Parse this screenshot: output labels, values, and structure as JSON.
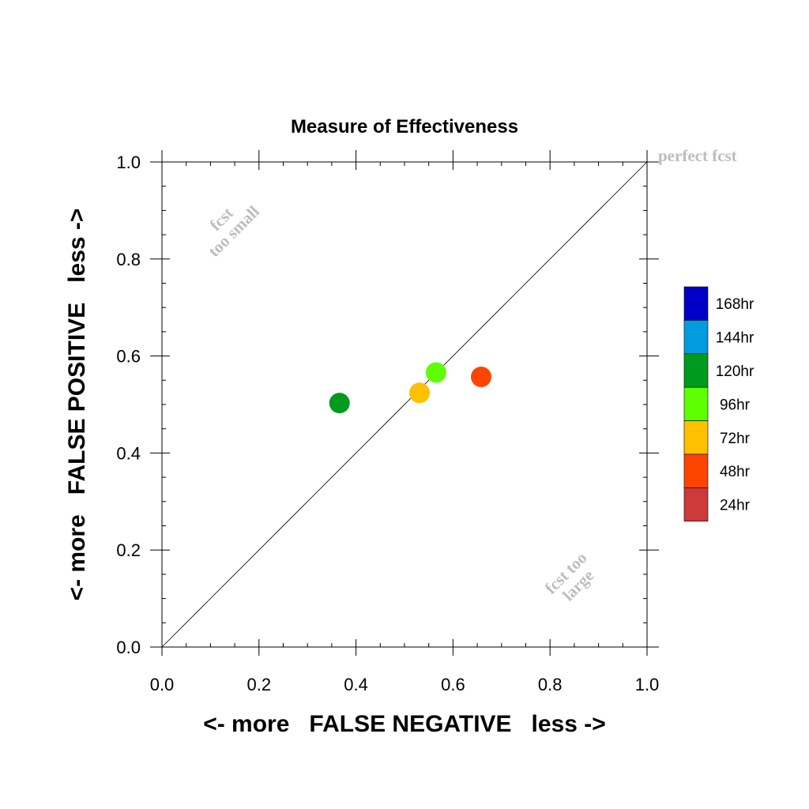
{
  "chart_data": {
    "type": "scatter",
    "title": "Measure of Effectiveness",
    "xlabel": "<- more   FALSE NEGATIVE   less ->",
    "ylabel": "<- more   FALSE POSITIVE   less ->",
    "xlim": [
      0.0,
      1.0
    ],
    "ylim": [
      0.0,
      1.0
    ],
    "x_ticks": [
      "0.0",
      "0.2",
      "0.4",
      "0.6",
      "0.8",
      "1.0"
    ],
    "y_ticks": [
      "0.0",
      "0.2",
      "0.4",
      "0.6",
      "0.8",
      "1.0"
    ],
    "grid": false,
    "reference_line": {
      "from": [
        0,
        0
      ],
      "to": [
        1,
        1
      ]
    },
    "annotations": {
      "perfect": "perfect fcst",
      "too_small_line1": "fcst",
      "too_small_line2": "too small",
      "too_large_line1": "fcst too",
      "too_large_line2": "large"
    },
    "points": [
      {
        "series": "120hr",
        "x": 0.366,
        "y": 0.503,
        "color": "#009a1e"
      },
      {
        "series": "72hr",
        "x": 0.531,
        "y": 0.524,
        "color": "#ffc000"
      },
      {
        "series": "96hr",
        "x": 0.565,
        "y": 0.566,
        "color": "#5eff00"
      },
      {
        "series": "48hr",
        "x": 0.658,
        "y": 0.557,
        "color": "#ff4400"
      }
    ],
    "legend": {
      "placement": "right",
      "entries": [
        {
          "label": "168hr",
          "color": "#0000c8"
        },
        {
          "label": "144hr",
          "color": "#009cdf"
        },
        {
          "label": "120hr",
          "color": "#009a1e"
        },
        {
          "label": "96hr",
          "color": "#5eff00"
        },
        {
          "label": "72hr",
          "color": "#ffc000"
        },
        {
          "label": "48hr",
          "color": "#ff4400"
        },
        {
          "label": "24hr",
          "color": "#cc3a3a"
        }
      ]
    }
  }
}
